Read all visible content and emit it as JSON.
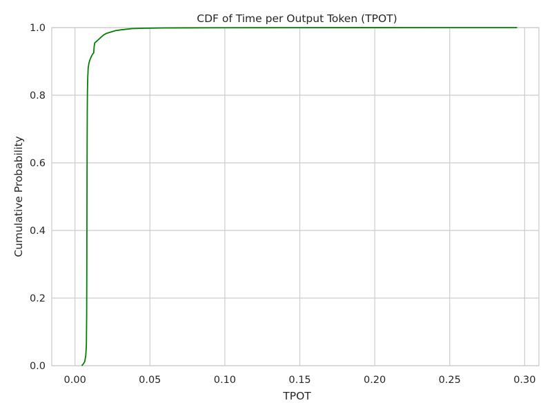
{
  "chart_data": {
    "type": "line",
    "title": "CDF of Time per Output Token (TPOT)",
    "xlabel": "TPOT",
    "ylabel": "Cumulative Probability",
    "xlim": [
      -0.0155,
      0.3095
    ],
    "ylim": [
      0.0,
      1.0
    ],
    "xticks": [
      0.0,
      0.05,
      0.1,
      0.15,
      0.2,
      0.25,
      0.3
    ],
    "xtick_labels": [
      "0.00",
      "0.05",
      "0.10",
      "0.15",
      "0.20",
      "0.25",
      "0.30"
    ],
    "yticks": [
      0.0,
      0.2,
      0.4,
      0.6,
      0.8,
      1.0
    ],
    "ytick_labels": [
      "0.0",
      "0.2",
      "0.4",
      "0.6",
      "0.8",
      "1.0"
    ],
    "grid": true,
    "series": [
      {
        "color": "#008000",
        "x": [
          0.0045,
          0.0055,
          0.0065,
          0.0072,
          0.0076,
          0.0078,
          0.0079,
          0.008,
          0.0081,
          0.0082,
          0.0083,
          0.0085,
          0.0088,
          0.0093,
          0.01,
          0.011,
          0.0118,
          0.0125,
          0.0128,
          0.0132,
          0.015,
          0.017,
          0.019,
          0.021,
          0.024,
          0.027,
          0.03,
          0.034,
          0.038,
          0.045,
          0.06,
          0.1,
          0.15,
          0.2,
          0.25,
          0.295
        ],
        "y": [
          0.0,
          0.005,
          0.012,
          0.03,
          0.06,
          0.15,
          0.3,
          0.5,
          0.65,
          0.75,
          0.81,
          0.85,
          0.88,
          0.895,
          0.905,
          0.915,
          0.922,
          0.925,
          0.945,
          0.955,
          0.962,
          0.97,
          0.978,
          0.983,
          0.987,
          0.991,
          0.993,
          0.995,
          0.997,
          0.998,
          0.999,
          0.9995,
          0.9998,
          0.9999,
          1.0,
          1.0
        ]
      }
    ]
  }
}
